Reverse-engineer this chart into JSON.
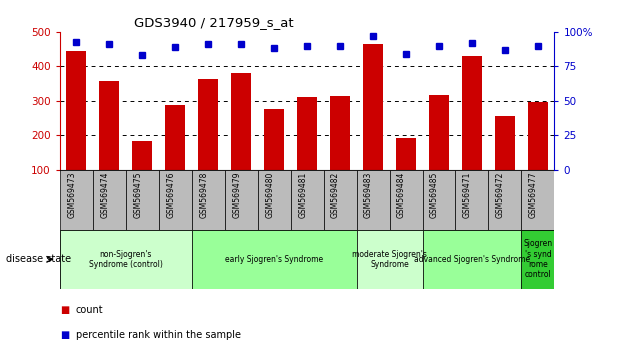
{
  "title": "GDS3940 / 217959_s_at",
  "samples": [
    "GSM569473",
    "GSM569474",
    "GSM569475",
    "GSM569476",
    "GSM569478",
    "GSM569479",
    "GSM569480",
    "GSM569481",
    "GSM569482",
    "GSM569483",
    "GSM569484",
    "GSM569485",
    "GSM569471",
    "GSM569472",
    "GSM569477"
  ],
  "counts": [
    445,
    358,
    183,
    288,
    362,
    381,
    276,
    310,
    313,
    465,
    193,
    318,
    430,
    257,
    297
  ],
  "percentiles": [
    93,
    91,
    83,
    89,
    91,
    91,
    88,
    90,
    90,
    97,
    84,
    90,
    92,
    87,
    90
  ],
  "bar_color": "#cc0000",
  "marker_color": "#0000cc",
  "ylim_left": [
    100,
    500
  ],
  "ylim_right": [
    0,
    100
  ],
  "yticks_left": [
    100,
    200,
    300,
    400,
    500
  ],
  "yticks_right": [
    0,
    25,
    50,
    75,
    100
  ],
  "groups": [
    {
      "label": "non-Sjogren's\nSyndrome (control)",
      "start": 0,
      "end": 4,
      "color": "#ccffcc"
    },
    {
      "label": "early Sjogren's Syndrome",
      "start": 4,
      "end": 9,
      "color": "#99ff99"
    },
    {
      "label": "moderate Sjogren's\nSyndrome",
      "start": 9,
      "end": 11,
      "color": "#ccffcc"
    },
    {
      "label": "advanced Sjogren's Syndrome",
      "start": 11,
      "end": 14,
      "color": "#99ff99"
    },
    {
      "label": "Sjogren\n's synd\nrome\ncontrol",
      "start": 14,
      "end": 15,
      "color": "#33cc33"
    }
  ],
  "disease_state_label": "disease state",
  "legend_count_label": "count",
  "legend_pct_label": "percentile rank within the sample",
  "background_color": "#ffffff",
  "tick_area_color": "#bbbbbb"
}
